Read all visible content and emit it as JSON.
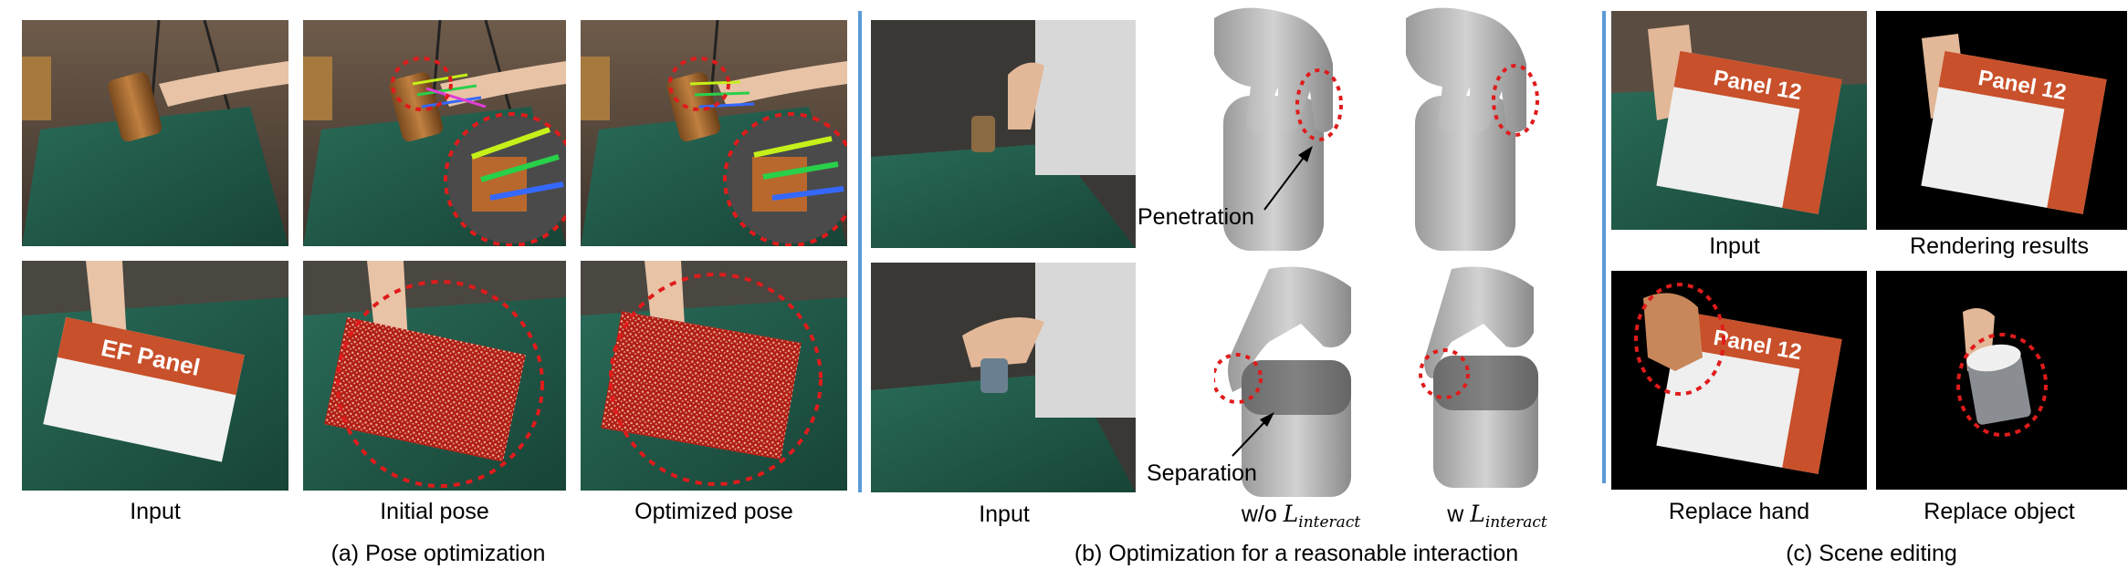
{
  "section_a": {
    "caption": "(a) Pose optimization",
    "labels": [
      "Input",
      "Initial pose",
      "Optimized pose"
    ]
  },
  "section_b": {
    "caption": "(b) Optimization for a reasonable interaction",
    "input_label": "Input",
    "wo_label_prefix": "w/o ",
    "w_label_prefix": "w ",
    "loss_symbol": "L",
    "loss_subscript": "interact",
    "annotation_penetration": "Penetration",
    "annotation_separation": "Separation"
  },
  "section_c": {
    "caption": "(c) Scene editing",
    "labels": [
      "Input",
      "Rendering results",
      "Replace hand",
      "Replace object"
    ],
    "box_text": "Panel 12",
    "box_side_text": "EF Pane"
  },
  "colors": {
    "separator": "#5b9bd5",
    "highlight_circle": "#e01b1b",
    "table_cloth": "#1f5a4a",
    "box_orange": "#c8502a",
    "mesh_gray": "#b9b9b9"
  }
}
